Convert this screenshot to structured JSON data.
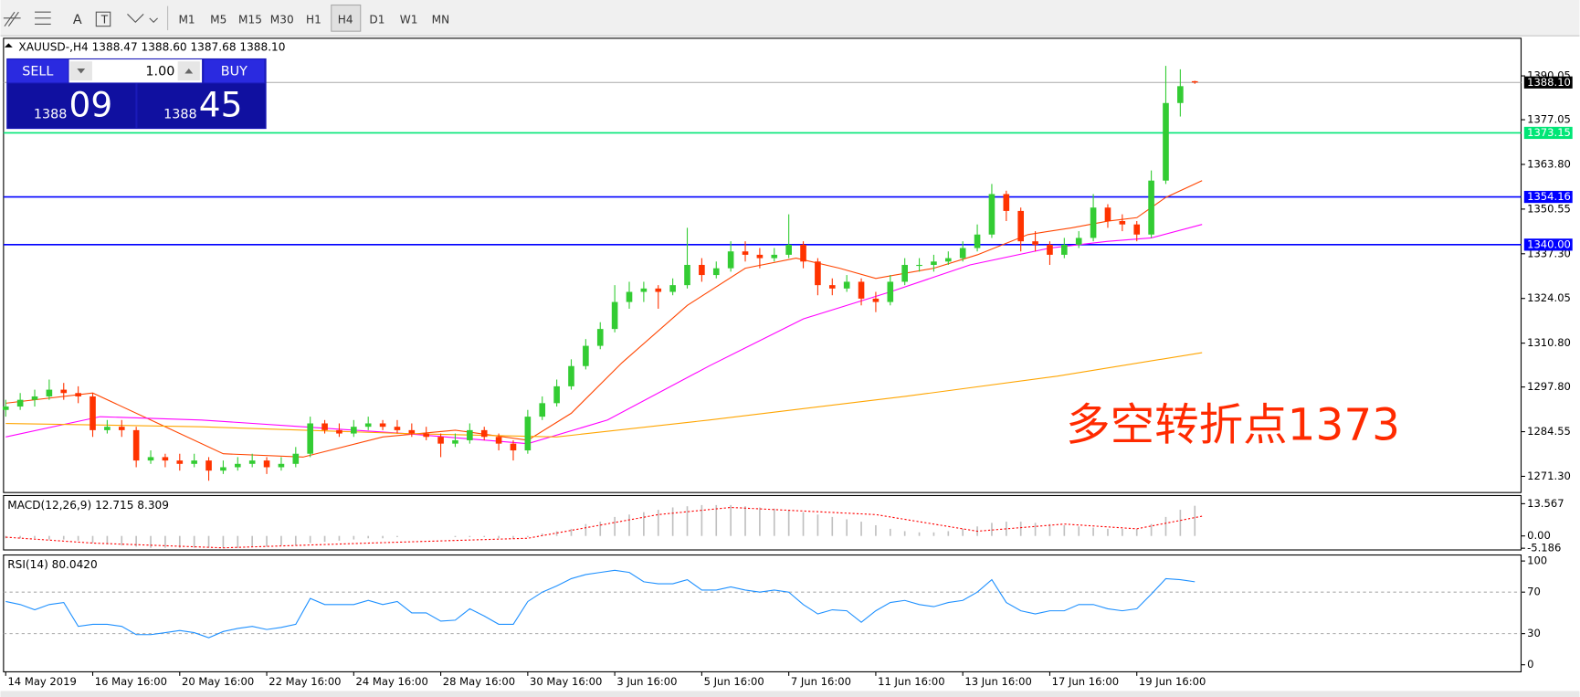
{
  "toolbar": {
    "timeframes": [
      "M1",
      "M5",
      "M15",
      "M30",
      "H1",
      "H4",
      "D1",
      "W1",
      "MN"
    ],
    "tools": [
      "A"
    ]
  },
  "trade": {
    "sell": "SELL",
    "buy": "BUY",
    "lot": "1.00",
    "sell_big": "1388",
    "sell_small": "09",
    "buy_big": "1388",
    "buy_small": "45"
  },
  "chart_data": [
    {
      "type": "candlestick",
      "header": "XAUUSD-,H4  1388.47 1388.60 1387.68 1388.10",
      "annotation": "多空转折点1373",
      "annotation_color": "#ff2a00",
      "up_color": "#33cc33",
      "down_color": "#ff3300",
      "x": [
        0,
        2,
        4,
        6,
        8,
        10,
        12,
        14,
        16,
        18,
        20,
        22,
        24,
        26,
        28,
        30,
        32,
        34,
        36,
        38,
        40,
        42,
        44,
        46,
        48,
        50,
        52,
        54,
        56,
        58,
        60,
        62,
        64,
        66,
        68,
        70,
        72,
        74,
        76,
        78,
        80,
        82,
        84,
        86,
        88,
        90,
        92,
        94,
        96,
        98,
        100,
        102,
        104,
        106,
        108,
        110,
        112,
        114,
        116,
        118,
        120,
        122,
        124,
        126,
        128,
        130,
        132,
        134,
        136,
        138,
        140,
        142,
        144,
        146,
        148,
        150,
        152,
        154,
        156,
        158,
        160,
        162,
        164
      ],
      "ohlc": [
        [
          1291,
          1294,
          1289,
          1292
        ],
        [
          1292,
          1296,
          1291,
          1294
        ],
        [
          1294,
          1297,
          1292,
          1295
        ],
        [
          1295,
          1300,
          1294,
          1297
        ],
        [
          1297,
          1299,
          1294,
          1296
        ],
        [
          1296,
          1298,
          1293,
          1295
        ],
        [
          1295,
          1296,
          1283,
          1285
        ],
        [
          1285,
          1288,
          1284,
          1286
        ],
        [
          1286,
          1288,
          1283,
          1285
        ],
        [
          1285,
          1286,
          1274,
          1276
        ],
        [
          1276,
          1279,
          1275,
          1277
        ],
        [
          1277,
          1278,
          1274,
          1276
        ],
        [
          1276,
          1278,
          1273,
          1275
        ],
        [
          1275,
          1278,
          1274,
          1276
        ],
        [
          1276,
          1277,
          1270,
          1273
        ],
        [
          1273,
          1276,
          1272,
          1274
        ],
        [
          1274,
          1277,
          1273,
          1275
        ],
        [
          1275,
          1278,
          1274,
          1276
        ],
        [
          1276,
          1277,
          1272,
          1274
        ],
        [
          1274,
          1277,
          1273,
          1275
        ],
        [
          1275,
          1280,
          1274,
          1278
        ],
        [
          1278,
          1289,
          1277,
          1287
        ],
        [
          1287,
          1288,
          1284,
          1285
        ],
        [
          1285,
          1287,
          1283,
          1284
        ],
        [
          1284,
          1288,
          1283,
          1286
        ],
        [
          1286,
          1289,
          1285,
          1287
        ],
        [
          1287,
          1288,
          1285,
          1286
        ],
        [
          1286,
          1288,
          1284,
          1285
        ],
        [
          1285,
          1287,
          1283,
          1284
        ],
        [
          1284,
          1286,
          1282,
          1283
        ],
        [
          1283,
          1284,
          1277,
          1281
        ],
        [
          1281,
          1284,
          1280,
          1282
        ],
        [
          1282,
          1287,
          1281,
          1285
        ],
        [
          1285,
          1286,
          1282,
          1283
        ],
        [
          1283,
          1284,
          1279,
          1281
        ],
        [
          1281,
          1282,
          1276,
          1279
        ],
        [
          1279,
          1291,
          1278,
          1289
        ],
        [
          1289,
          1295,
          1288,
          1293
        ],
        [
          1293,
          1300,
          1292,
          1298
        ],
        [
          1298,
          1306,
          1297,
          1304
        ],
        [
          1304,
          1312,
          1303,
          1310
        ],
        [
          1310,
          1317,
          1309,
          1315
        ],
        [
          1315,
          1328,
          1314,
          1323
        ],
        [
          1323,
          1329,
          1321,
          1326
        ],
        [
          1326,
          1329,
          1323,
          1327
        ],
        [
          1327,
          1328,
          1321,
          1326
        ],
        [
          1326,
          1330,
          1325,
          1328
        ],
        [
          1328,
          1345,
          1327,
          1334
        ],
        [
          1334,
          1336,
          1329,
          1331
        ],
        [
          1331,
          1335,
          1330,
          1333
        ],
        [
          1333,
          1341,
          1332,
          1338
        ],
        [
          1338,
          1341,
          1335,
          1337
        ],
        [
          1337,
          1339,
          1333,
          1336
        ],
        [
          1336,
          1339,
          1335,
          1337
        ],
        [
          1337,
          1349,
          1336,
          1340
        ],
        [
          1340,
          1341,
          1333,
          1335
        ],
        [
          1335,
          1336,
          1325,
          1328
        ],
        [
          1328,
          1330,
          1325,
          1327
        ],
        [
          1327,
          1331,
          1326,
          1329
        ],
        [
          1329,
          1330,
          1322,
          1324
        ],
        [
          1324,
          1326,
          1320,
          1323
        ],
        [
          1323,
          1331,
          1322,
          1329
        ],
        [
          1329,
          1336,
          1328,
          1334
        ],
        [
          1334,
          1336,
          1332,
          1334
        ],
        [
          1334,
          1337,
          1332,
          1335
        ],
        [
          1335,
          1338,
          1334,
          1336
        ],
        [
          1336,
          1341,
          1335,
          1339
        ],
        [
          1339,
          1346,
          1338,
          1343
        ],
        [
          1343,
          1358,
          1342,
          1355
        ],
        [
          1355,
          1356,
          1347,
          1350
        ],
        [
          1350,
          1351,
          1338,
          1341
        ],
        [
          1341,
          1344,
          1338,
          1340
        ],
        [
          1340,
          1341,
          1334,
          1337
        ],
        [
          1337,
          1342,
          1336,
          1340
        ],
        [
          1340,
          1344,
          1339,
          1342
        ],
        [
          1342,
          1355,
          1341,
          1351
        ],
        [
          1351,
          1352,
          1345,
          1347
        ],
        [
          1347,
          1349,
          1344,
          1346
        ],
        [
          1346,
          1347,
          1341,
          1343
        ],
        [
          1343,
          1362,
          1342,
          1359
        ],
        [
          1359,
          1393,
          1358,
          1382
        ],
        [
          1382,
          1392,
          1378,
          1387
        ],
        [
          1388.47,
          1388.6,
          1387.68,
          1388.1
        ]
      ],
      "series": [
        {
          "color": "#ff4500",
          "x": [
            0,
            12,
            20,
            30,
            41,
            52,
            62,
            72,
            78,
            85,
            94,
            102,
            109,
            115,
            120,
            128,
            134,
            141,
            147,
            152,
            156,
            160,
            165
          ],
          "values": [
            1293,
            1296,
            1288,
            1278,
            1277,
            1283,
            1285,
            1282,
            1290,
            1305,
            1322,
            1333,
            1336,
            1333,
            1330,
            1333,
            1337,
            1343,
            1345,
            1347,
            1348,
            1354,
            1359
          ]
        },
        {
          "color": "#ff00ff",
          "x": [
            0,
            13,
            27,
            41,
            55,
            72,
            83,
            97,
            110,
            122,
            133,
            144,
            152,
            158,
            165
          ],
          "values": [
            1283,
            1289,
            1288,
            1286,
            1284,
            1281,
            1288,
            1304,
            1318,
            1326,
            1334,
            1339,
            1341,
            1342,
            1346
          ]
        },
        {
          "color": "#ffa500",
          "x": [
            0,
            27,
            55,
            76,
            97,
            124,
            145,
            165
          ],
          "values": [
            1287,
            1286,
            1284,
            1283,
            1288,
            1295,
            1301,
            1308
          ]
        }
      ],
      "levels": [
        {
          "value": 1373.15,
          "label": "1373.15",
          "color": "#00e676"
        },
        {
          "value": 1354.16,
          "label": "1354.16",
          "color": "#0000ff"
        },
        {
          "value": 1340,
          "label": "1340.00",
          "color": "#0000ff"
        }
      ],
      "last": {
        "value": 1388.1,
        "label": "1388.10"
      },
      "xlim": [
        -0.3,
        209
      ],
      "ylim": [
        1266.5,
        1401.2
      ],
      "yticks": [
        {
          "value": 1390.05,
          "label": "1390.05"
        },
        {
          "value": 1377.05,
          "label": "1377.05"
        },
        {
          "value": 1363.8,
          "label": "1363.80"
        },
        {
          "value": 1350.55,
          "label": "1350.55"
        },
        {
          "value": 1337.3,
          "label": "1337.30"
        },
        {
          "value": 1324.05,
          "label": "1324.05"
        },
        {
          "value": 1310.8,
          "label": "1310.80"
        },
        {
          "value": 1297.8,
          "label": "1297.80"
        },
        {
          "value": 1284.55,
          "label": "1284.55"
        },
        {
          "value": 1271.3,
          "label": "1271.30"
        }
      ],
      "xticks": [
        {
          "value": 0,
          "label": "14 May 2019"
        },
        {
          "value": 12,
          "label": "16 May 16:00"
        },
        {
          "value": 24,
          "label": "20 May 16:00"
        },
        {
          "value": 36,
          "label": "22 May 16:00"
        },
        {
          "value": 48,
          "label": "24 May 16:00"
        },
        {
          "value": 60,
          "label": "28 May 16:00"
        },
        {
          "value": 72,
          "label": "30 May 16:00"
        },
        {
          "value": 84,
          "label": "3 Jun 16:00"
        },
        {
          "value": 96,
          "label": "5 Jun 16:00"
        },
        {
          "value": 108,
          "label": "7 Jun 16:00"
        },
        {
          "value": 120,
          "label": "11 Jun 16:00"
        },
        {
          "value": 132,
          "label": "13 Jun 16:00"
        },
        {
          "value": 144,
          "label": "17 Jun 16:00"
        },
        {
          "value": 156,
          "label": "19 Jun 16:00"
        }
      ]
    },
    {
      "type": "macd",
      "title": "MACD(12,26,9) 12.715 8.309",
      "color": "#c0c0c0",
      "signal_color": "#ff0000",
      "x": [
        0,
        2,
        4,
        6,
        8,
        10,
        12,
        14,
        16,
        18,
        20,
        22,
        24,
        26,
        28,
        30,
        32,
        34,
        36,
        38,
        40,
        42,
        44,
        46,
        48,
        50,
        52,
        54,
        56,
        58,
        60,
        62,
        64,
        66,
        68,
        70,
        72,
        74,
        76,
        78,
        80,
        82,
        84,
        86,
        88,
        90,
        92,
        94,
        96,
        98,
        100,
        102,
        104,
        106,
        108,
        110,
        112,
        114,
        116,
        118,
        120,
        122,
        124,
        126,
        128,
        130,
        132,
        134,
        136,
        138,
        140,
        142,
        144,
        146,
        148,
        150,
        152,
        154,
        156,
        158,
        160,
        162,
        164
      ],
      "values": [
        -1,
        -1,
        -1,
        -1.5,
        -1.5,
        -2,
        -3,
        -3.5,
        -4,
        -4.5,
        -5,
        -5,
        -5,
        -5,
        -5,
        -5,
        -5,
        -4.5,
        -4.5,
        -4,
        -4,
        -3,
        -2.5,
        -2,
        -1.5,
        -1,
        -1,
        -0.5,
        0,
        0,
        0,
        -0.5,
        -0.5,
        -0.5,
        -1,
        -1,
        -0.5,
        1,
        2,
        3,
        5,
        6,
        8,
        9,
        10,
        11,
        12,
        12.5,
        13,
        13,
        13,
        12.5,
        12,
        11.5,
        11,
        10,
        9,
        8,
        7,
        6,
        4.5,
        3,
        2,
        1.5,
        1.5,
        2,
        3,
        4,
        5.5,
        6,
        6,
        5.5,
        5,
        4.5,
        4,
        3.5,
        3,
        3,
        3,
        5,
        8,
        11,
        12.7
      ],
      "signal_x": [
        0,
        12,
        30,
        50,
        72,
        90,
        100,
        120,
        134,
        146,
        156,
        165
      ],
      "signal": [
        -0.5,
        -3,
        -5,
        -3,
        -1,
        9,
        12,
        9,
        2,
        5,
        3,
        8.3
      ],
      "xlim": [
        -0.3,
        209
      ],
      "ylim": [
        -5.9,
        17
      ],
      "yticks": [
        {
          "value": 13.567,
          "label": "13.567"
        },
        {
          "value": 0,
          "label": "0.00"
        },
        {
          "value": -5.186,
          "label": "-5.186"
        }
      ]
    },
    {
      "type": "line",
      "title": "RSI(14) 80.0420",
      "color": "#1e90ff",
      "x": [
        0,
        2,
        4,
        6,
        8,
        10,
        12,
        14,
        16,
        18,
        20,
        22,
        24,
        26,
        28,
        30,
        32,
        34,
        36,
        38,
        40,
        42,
        44,
        46,
        48,
        50,
        52,
        54,
        56,
        58,
        60,
        62,
        64,
        66,
        68,
        70,
        72,
        74,
        76,
        78,
        80,
        82,
        84,
        86,
        88,
        90,
        92,
        94,
        96,
        98,
        100,
        102,
        104,
        106,
        108,
        110,
        112,
        114,
        116,
        118,
        120,
        122,
        124,
        126,
        128,
        130,
        132,
        134,
        136,
        138,
        140,
        142,
        144,
        146,
        148,
        150,
        152,
        154,
        156,
        158,
        160,
        162,
        164
      ],
      "values": [
        61,
        58,
        53,
        58,
        60,
        37,
        39,
        39,
        37,
        29,
        29,
        31,
        33,
        31,
        26,
        32,
        35,
        37,
        34,
        36,
        39,
        64,
        58,
        58,
        58,
        62,
        58,
        61,
        50,
        50,
        42,
        43,
        54,
        47,
        39,
        39,
        61,
        70,
        76,
        83,
        87,
        89,
        91,
        89,
        80,
        78,
        78,
        82,
        72,
        72,
        75,
        72,
        70,
        72,
        70,
        58,
        49,
        53,
        52,
        41,
        52,
        60,
        62,
        58,
        56,
        60,
        62,
        70,
        82,
        60,
        52,
        49,
        52,
        52,
        58,
        58,
        54,
        52,
        54,
        68,
        83,
        82,
        80
      ],
      "levels": [
        70,
        30
      ],
      "xlim": [
        -0.3,
        209
      ],
      "ylim": [
        -6.8,
        105.8
      ],
      "yticks": [
        100,
        70,
        30,
        0
      ]
    }
  ]
}
